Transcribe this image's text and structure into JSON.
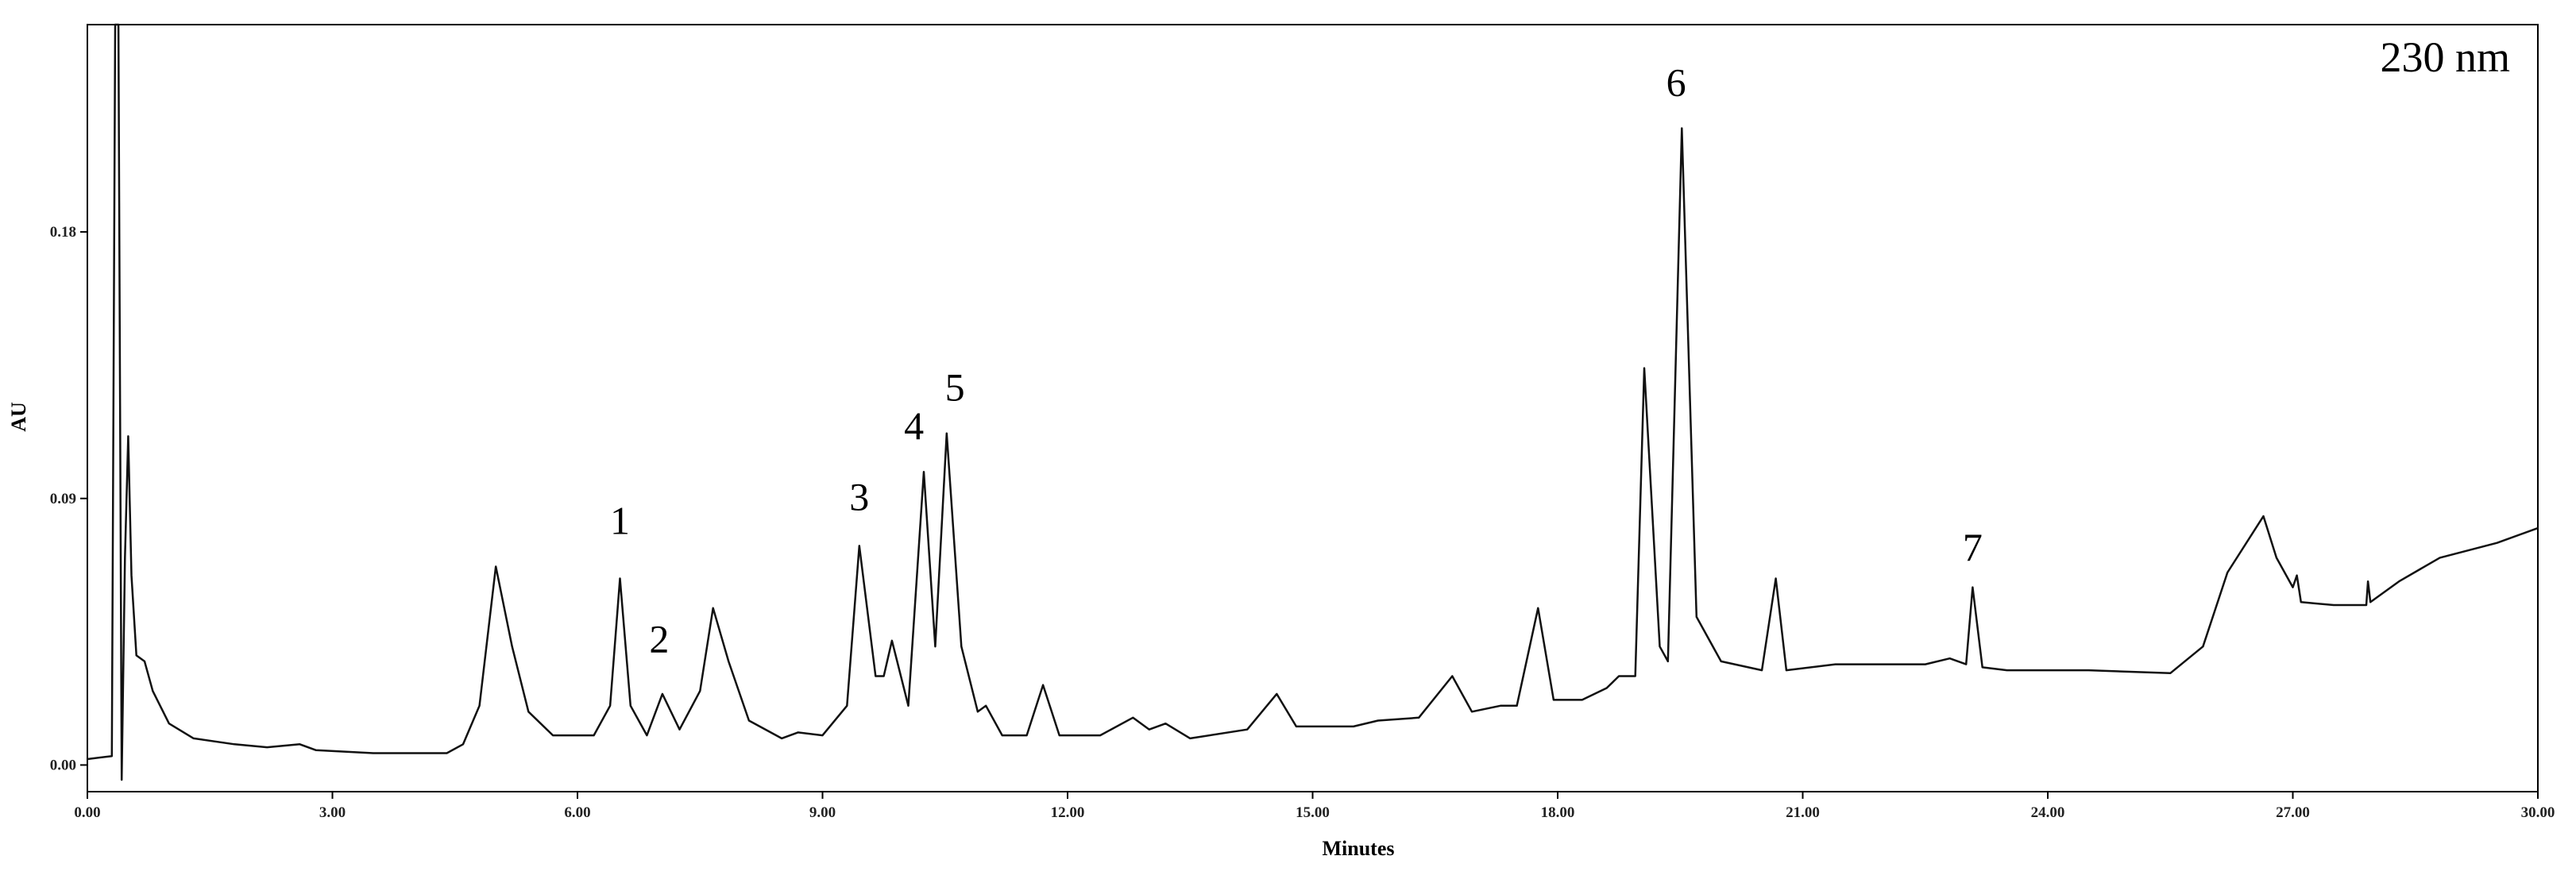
{
  "chart_data": {
    "type": "line",
    "subtitle": "230 nm",
    "xlabel": "Minutes",
    "ylabel": "AU",
    "xlim": [
      0,
      30
    ],
    "ylim": [
      -0.009,
      0.25
    ],
    "xticks": [
      {
        "value": 0,
        "label": "0.00"
      },
      {
        "value": 3,
        "label": "3.00"
      },
      {
        "value": 6,
        "label": "6.00"
      },
      {
        "value": 9,
        "label": "9.00"
      },
      {
        "value": 12,
        "label": "12.00"
      },
      {
        "value": 15,
        "label": "15.00"
      },
      {
        "value": 18,
        "label": "18.00"
      },
      {
        "value": 21,
        "label": "21.00"
      },
      {
        "value": 24,
        "label": "24.00"
      },
      {
        "value": 27,
        "label": "27.00"
      },
      {
        "value": 30,
        "label": "30.00"
      }
    ],
    "yticks": [
      {
        "value": 0,
        "label": "0.00"
      },
      0.09,
      0.18
    ],
    "grid": false,
    "series": [
      {
        "color": "#111111",
        "x": [
          0.0,
          0.3,
          0.34,
          0.38,
          0.42,
          0.46,
          0.5,
          0.54,
          0.6,
          0.7,
          0.8,
          1.0,
          1.3,
          1.8,
          2.2,
          2.6,
          2.8,
          3.5,
          4.4,
          4.6,
          4.8,
          5.0,
          5.2,
          5.4,
          5.7,
          6.2,
          6.4,
          6.52,
          6.65,
          6.85,
          7.04,
          7.25,
          7.5,
          7.66,
          7.85,
          8.1,
          8.5,
          8.7,
          9.0,
          9.3,
          9.45,
          9.65,
          9.75,
          9.85,
          10.05,
          10.24,
          10.38,
          10.52,
          10.7,
          10.9,
          11.0,
          11.2,
          11.5,
          11.7,
          11.9,
          12.4,
          12.8,
          13.0,
          13.2,
          13.5,
          14.2,
          14.56,
          14.8,
          15.5,
          15.8,
          16.3,
          16.71,
          16.95,
          17.3,
          17.5,
          17.76,
          17.95,
          18.3,
          18.6,
          18.75,
          18.95,
          19.06,
          19.25,
          19.35,
          19.52,
          19.7,
          20.0,
          20.5,
          20.67,
          20.8,
          21.4,
          22.5,
          22.8,
          23.0,
          23.08,
          23.2,
          23.5,
          24.5,
          25.5,
          25.9,
          26.2,
          26.64,
          26.8,
          27.0,
          27.05,
          27.1,
          27.5,
          27.9,
          27.92,
          27.95,
          28.3,
          28.8,
          29.5,
          30.0
        ],
        "values": [
          0.002,
          0.003,
          0.25,
          0.25,
          -0.005,
          0.07,
          0.111,
          0.064,
          0.037,
          0.035,
          0.025,
          0.014,
          0.009,
          0.007,
          0.006,
          0.007,
          0.005,
          0.004,
          0.004,
          0.007,
          0.02,
          0.067,
          0.04,
          0.018,
          0.01,
          0.01,
          0.02,
          0.063,
          0.02,
          0.01,
          0.024,
          0.012,
          0.025,
          0.053,
          0.035,
          0.015,
          0.009,
          0.011,
          0.01,
          0.02,
          0.074,
          0.03,
          0.03,
          0.042,
          0.02,
          0.099,
          0.04,
          0.112,
          0.04,
          0.018,
          0.02,
          0.01,
          0.01,
          0.027,
          0.01,
          0.01,
          0.016,
          0.012,
          0.014,
          0.009,
          0.012,
          0.024,
          0.013,
          0.013,
          0.015,
          0.016,
          0.03,
          0.018,
          0.02,
          0.02,
          0.053,
          0.022,
          0.022,
          0.026,
          0.03,
          0.03,
          0.134,
          0.04,
          0.035,
          0.215,
          0.05,
          0.035,
          0.032,
          0.063,
          0.032,
          0.034,
          0.034,
          0.036,
          0.034,
          0.06,
          0.033,
          0.032,
          0.032,
          0.031,
          0.04,
          0.065,
          0.084,
          0.07,
          0.06,
          0.064,
          0.055,
          0.054,
          0.054,
          0.062,
          0.055,
          0.062,
          0.07,
          0.075,
          0.08
        ]
      }
    ],
    "annotations": [
      {
        "text": "1",
        "x": 6.52,
        "y": 0.078
      },
      {
        "text": "2",
        "x": 7.0,
        "y": 0.038
      },
      {
        "text": "3",
        "x": 9.45,
        "y": 0.086
      },
      {
        "text": "4",
        "x": 10.12,
        "y": 0.11
      },
      {
        "text": "5",
        "x": 10.62,
        "y": 0.123
      },
      {
        "text": "6",
        "x": 19.45,
        "y": 0.226
      },
      {
        "text": "7",
        "x": 23.08,
        "y": 0.069
      }
    ]
  }
}
